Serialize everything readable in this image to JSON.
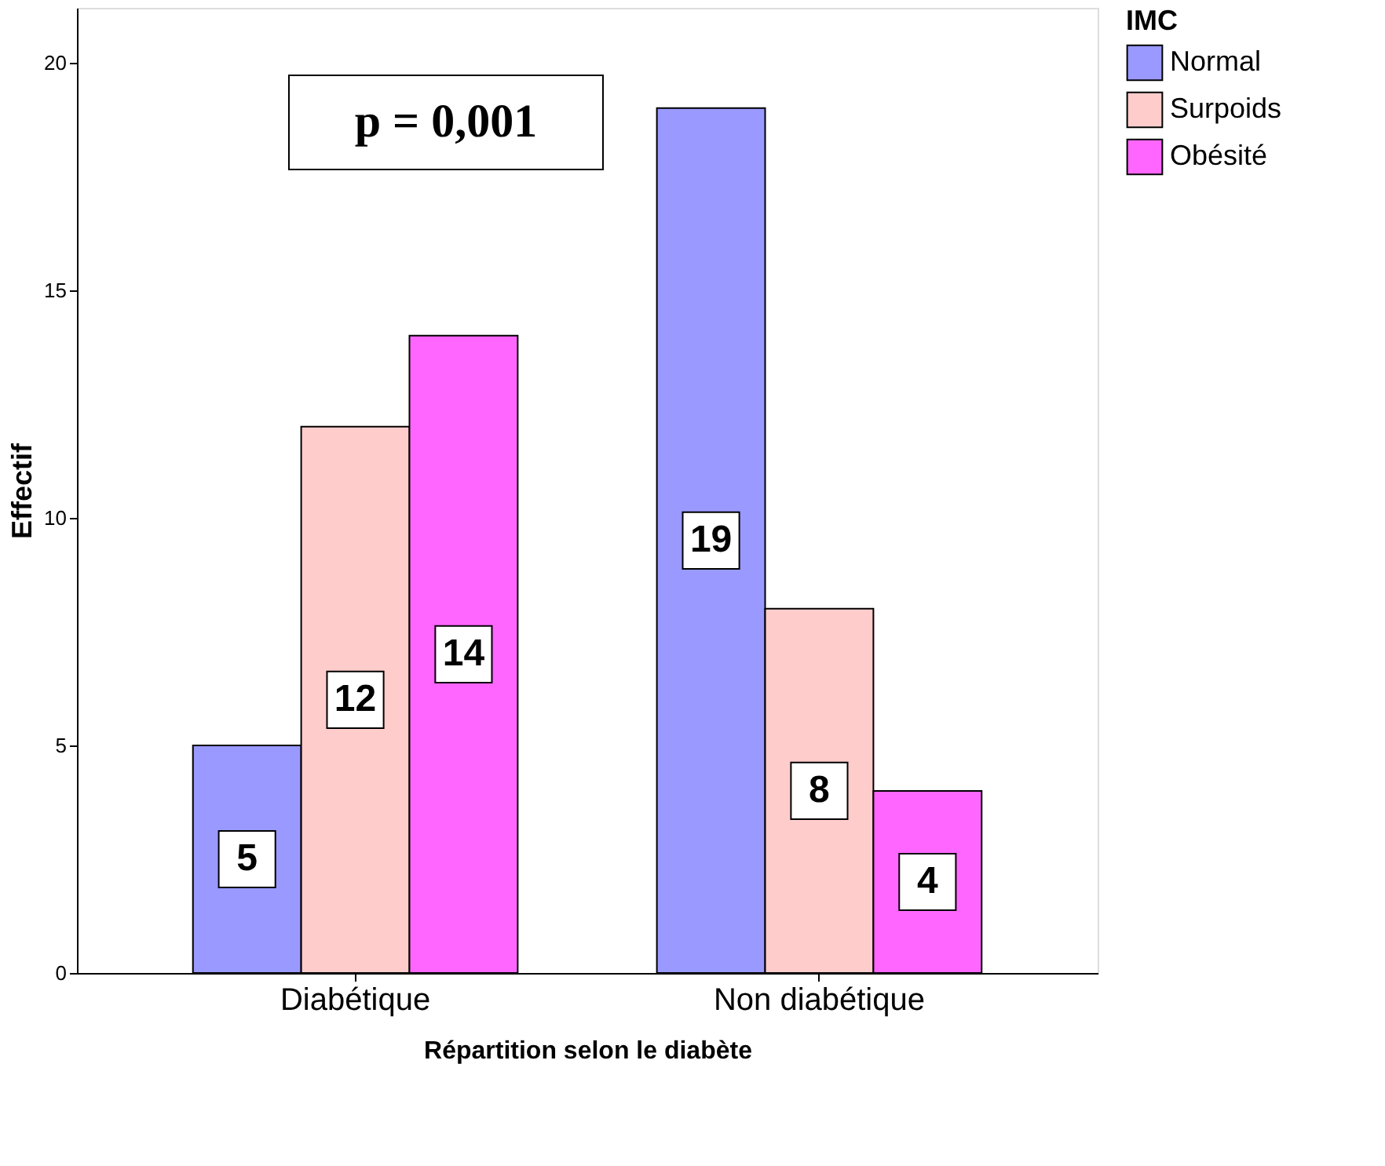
{
  "chart_data": {
    "type": "bar",
    "categories": [
      "Diabétique",
      "Non diabétique"
    ],
    "series": [
      {
        "name": "Normal",
        "color": "#9999ff",
        "values": [
          5,
          19
        ]
      },
      {
        "name": "Surpoids",
        "color": "#ffcccc",
        "values": [
          12,
          8
        ]
      },
      {
        "name": "Obésité",
        "color": "#ff66ff",
        "values": [
          14,
          4
        ]
      }
    ],
    "xlabel": "Répartition selon le diabète",
    "ylabel": "Effectif",
    "legend_title": "IMC",
    "legend": "right",
    "ylim": [
      0,
      21.2
    ],
    "yticks": [
      0,
      5,
      10,
      15,
      20
    ],
    "grid": false,
    "data_labels": true,
    "annotations": [
      "p = 0,001"
    ]
  }
}
